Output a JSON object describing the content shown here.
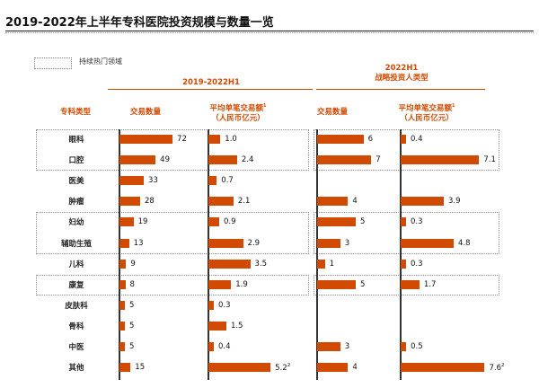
{
  "title": "2019-2022年上半年专科医院投资规模与数量一览",
  "legend_label": "持续热门领域",
  "groups": [
    {
      "label": "2019-2022H1"
    },
    {
      "label": "2022H1\n战略投资人类型"
    }
  ],
  "columns": {
    "category": "专科类型",
    "count_1": "交易数量",
    "avg_1": "平均单笔交易额",
    "avg_1_note": "1",
    "avg_1_unit": "（人民币亿元）",
    "count_2": "交易数量",
    "avg_2": "平均单笔交易额",
    "avg_2_note": "1",
    "avg_2_unit": "（人民币亿元）"
  },
  "colors": {
    "bar": "#d04a02",
    "header": "#d04a02"
  },
  "chart_data": {
    "type": "bar",
    "categories": [
      "眼科",
      "口腔",
      "医美",
      "肿瘤",
      "妇幼",
      "辅助生殖",
      "儿科",
      "康复",
      "皮肤科",
      "骨科",
      "中医",
      "其他"
    ],
    "highlighted": [
      "眼科",
      "口腔",
      "妇幼",
      "辅助生殖",
      "康复"
    ],
    "series": [
      {
        "values": [
          72,
          49,
          33,
          28,
          19,
          13,
          9,
          8,
          5,
          5,
          5,
          15
        ]
      },
      {
        "values": [
          1.0,
          2.4,
          0.7,
          2.1,
          0.9,
          2.9,
          3.5,
          1.9,
          0.3,
          1.5,
          0.4,
          5.2
        ],
        "labels": [
          "1.0",
          "2.4",
          "0.7",
          "2.1",
          "0.9",
          "2.9",
          "3.5",
          "1.9",
          "0.3",
          "1.5",
          "0.4",
          "5.2"
        ],
        "notes": [
          "",
          "",
          "",
          "",
          "",
          "",
          "",
          "",
          "",
          "",
          "",
          "2"
        ]
      },
      {
        "values": [
          6,
          7,
          0,
          4,
          5,
          3,
          1,
          5,
          0,
          0,
          3,
          4
        ],
        "labels": [
          "6",
          "7",
          "",
          "4",
          "5",
          "3",
          "1",
          "5",
          "",
          "",
          "3",
          "4"
        ]
      },
      {
        "values": [
          0.4,
          7.1,
          0,
          3.9,
          0.3,
          4.8,
          0.3,
          1.7,
          0,
          0,
          0.5,
          7.6
        ],
        "labels": [
          "0.4",
          "7.1",
          "",
          "3.9",
          "0.3",
          "4.8",
          "0.3",
          "1.7",
          "",
          "",
          "0.5",
          "7.6"
        ],
        "notes": [
          "",
          "",
          "",
          "",
          "",
          "",
          "",
          "",
          "",
          "",
          "",
          "2"
        ]
      }
    ]
  }
}
